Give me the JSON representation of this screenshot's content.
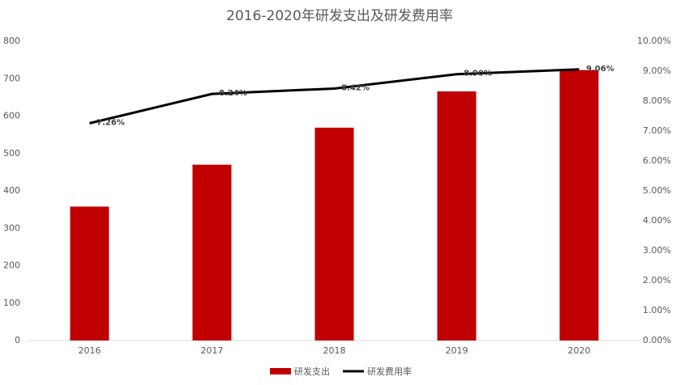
{
  "chart_data": {
    "type": "bar",
    "title": "2016-2020年研发支出及研发费用率",
    "categories": [
      "2016",
      "2017",
      "2018",
      "2019",
      "2020"
    ],
    "series": [
      {
        "name": "研发支出",
        "type": "bar",
        "color": "#c00000",
        "values": [
          358,
          470,
          569,
          666,
          723
        ]
      },
      {
        "name": "研发费用率",
        "type": "line",
        "axis": "y2",
        "color": "#000000",
        "values": [
          7.26,
          8.24,
          8.42,
          8.9,
          9.06
        ],
        "value_labels": [
          "7.26%",
          "8.24%",
          "8.42%",
          "8.90%",
          "9.06%"
        ]
      }
    ],
    "ylim": [
      0,
      800
    ],
    "yticks": [
      0,
      100,
      200,
      300,
      400,
      500,
      600,
      700,
      800
    ],
    "y2lim": [
      0,
      10
    ],
    "y2ticks": [
      {
        "value": 0,
        "label": "0.00%"
      },
      {
        "value": 1,
        "label": "1.00%"
      },
      {
        "value": 2,
        "label": "2.00%"
      },
      {
        "value": 3,
        "label": "3.00%"
      },
      {
        "value": 4,
        "label": "4.00%"
      },
      {
        "value": 5,
        "label": "5.00%"
      },
      {
        "value": 6,
        "label": "6.00%"
      },
      {
        "value": 7,
        "label": "7.00%"
      },
      {
        "value": 8,
        "label": "8.00%"
      },
      {
        "value": 9,
        "label": "9.00%"
      },
      {
        "value": 10,
        "label": "10.00%"
      }
    ],
    "grid": false,
    "legend": "bottom"
  }
}
